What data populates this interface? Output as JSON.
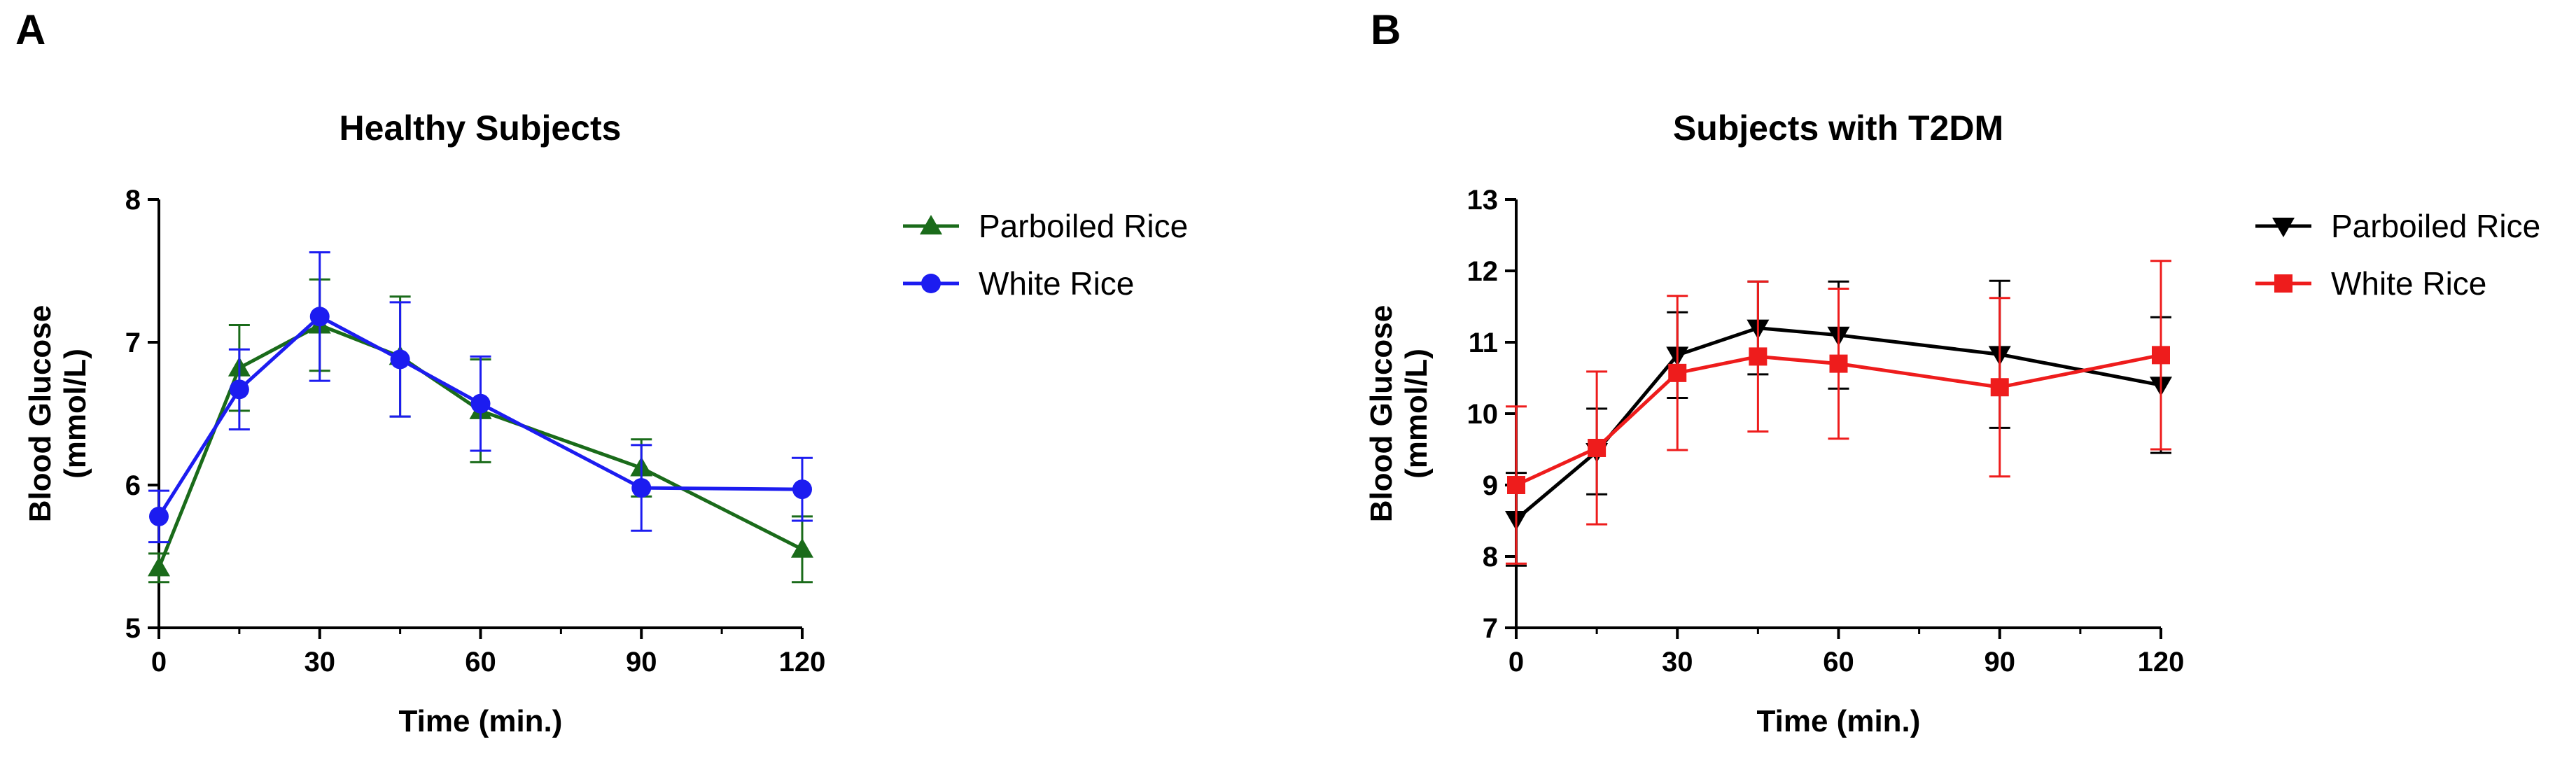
{
  "chart_data": [
    {
      "panel": "A",
      "type": "line",
      "title": "Healthy Subjects",
      "xlabel": "Time (min.)",
      "ylabel_line1": "Blood Glucose",
      "ylabel_line2": "(mmol/L)",
      "xlim": [
        0,
        120
      ],
      "ylim": [
        5,
        8
      ],
      "xticks": [
        0,
        30,
        60,
        90,
        120
      ],
      "yticks": [
        5,
        6,
        7,
        8
      ],
      "x": [
        0,
        15,
        30,
        45,
        60,
        90,
        120
      ],
      "series": [
        {
          "name": "Parboiled Rice",
          "color": "#1a6b1a",
          "marker": "triangle-up",
          "values": [
            5.42,
            6.82,
            7.12,
            6.9,
            6.52,
            6.12,
            5.55
          ],
          "error": [
            0.1,
            0.3,
            0.32,
            0.42,
            0.36,
            0.2,
            0.23
          ]
        },
        {
          "name": "White Rice",
          "color": "#1c1cf0",
          "marker": "circle",
          "values": [
            5.78,
            6.67,
            7.18,
            6.88,
            6.57,
            5.98,
            5.97
          ],
          "error": [
            0.18,
            0.28,
            0.45,
            0.4,
            0.33,
            0.3,
            0.22
          ]
        }
      ]
    },
    {
      "panel": "B",
      "type": "line",
      "title": "Subjects with T2DM",
      "xlabel": "Time (min.)",
      "ylabel_line1": "Blood Glucose",
      "ylabel_line2": "(mmol/L)",
      "xlim": [
        0,
        120
      ],
      "ylim": [
        7,
        13
      ],
      "xticks": [
        0,
        30,
        60,
        90,
        120
      ],
      "yticks": [
        7,
        8,
        9,
        10,
        11,
        12,
        13
      ],
      "x": [
        0,
        15,
        30,
        45,
        60,
        90,
        120
      ],
      "series": [
        {
          "name": "Parboiled Rice",
          "color": "#000000",
          "marker": "triangle-down",
          "values": [
            8.52,
            9.47,
            10.82,
            11.2,
            11.1,
            10.83,
            10.4
          ],
          "error": [
            0.65,
            0.6,
            0.6,
            0.65,
            0.75,
            1.03,
            0.95
          ]
        },
        {
          "name": "White Rice",
          "color": "#ee1c1c",
          "marker": "square",
          "values": [
            9.0,
            9.52,
            10.57,
            10.8,
            10.7,
            10.37,
            10.82
          ],
          "error": [
            1.1,
            1.07,
            1.08,
            1.05,
            1.05,
            1.25,
            1.32
          ]
        }
      ]
    }
  ],
  "panels": [
    {
      "label": "A"
    },
    {
      "label": "B"
    }
  ]
}
